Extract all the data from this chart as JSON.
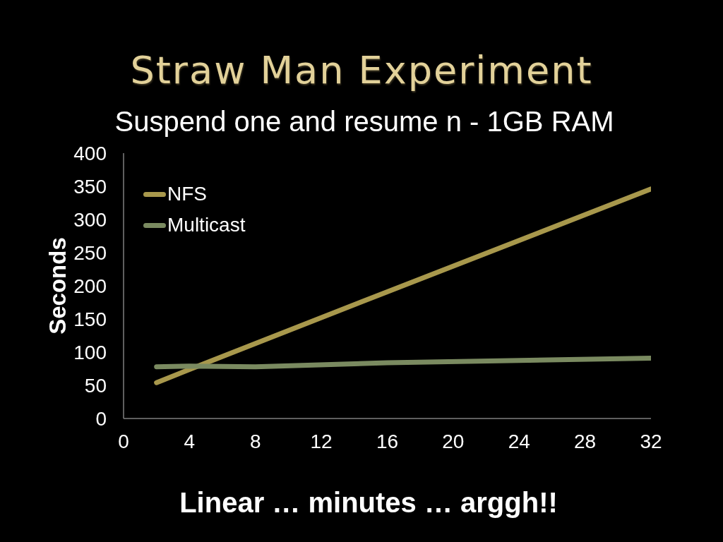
{
  "chart_data": {
    "type": "line",
    "title": "Straw Man Experiment",
    "subtitle": "Suspend one and resume n - 1GB RAM",
    "ylabel": "Seconds",
    "annotations": [
      "Linear … minutes … arggh!!"
    ],
    "x": [
      2,
      4,
      8,
      16,
      32
    ],
    "series": [
      {
        "name": "NFS",
        "color": "#a8984c",
        "values": [
          54,
          74,
          113,
          191,
          346
        ]
      },
      {
        "name": "Multicast",
        "color": "#7a8a60",
        "values": [
          78,
          79,
          78,
          84,
          91
        ]
      }
    ],
    "xlim": [
      0,
      32
    ],
    "xticks": [
      0,
      4,
      8,
      12,
      16,
      20,
      24,
      28,
      32
    ],
    "ylim": [
      0,
      400
    ],
    "yticks": [
      0,
      50,
      100,
      150,
      200,
      250,
      300,
      350,
      400
    ],
    "legend": "top left",
    "marker": "none",
    "line_style": "solid"
  }
}
